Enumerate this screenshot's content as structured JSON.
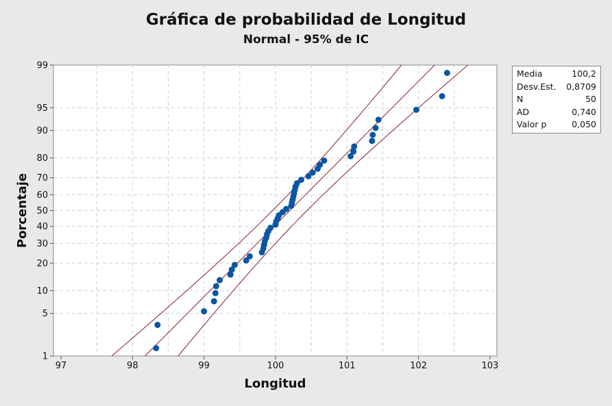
{
  "chart_data": {
    "type": "scatter",
    "title": "Gráfica de probabilidad de Longitud",
    "subtitle": "Normal - 95% de IC",
    "xlabel": "Longitud",
    "ylabel": "Porcentaje",
    "xlim": [
      96.97,
      103.15
    ],
    "ylim": [
      1,
      99
    ],
    "y_scale": "normal-probability",
    "grid": true,
    "x_ticks": [
      "97",
      "98",
      "99",
      "100",
      "101",
      "102",
      "103"
    ],
    "y_ticks": [
      "1",
      "5",
      "10",
      "20",
      "30",
      "40",
      "50",
      "60",
      "70",
      "80",
      "90",
      "95",
      "99"
    ],
    "values": [
      98.33,
      98.35,
      99.0,
      99.14,
      99.16,
      99.17,
      99.22,
      99.37,
      99.39,
      99.43,
      99.59,
      99.64,
      99.81,
      99.83,
      99.84,
      99.85,
      99.87,
      99.88,
      99.9,
      99.93,
      100.0,
      100.01,
      100.03,
      100.05,
      100.1,
      100.15,
      100.22,
      100.23,
      100.24,
      100.25,
      100.26,
      100.27,
      100.28,
      100.3,
      100.36,
      100.46,
      100.52,
      100.59,
      100.62,
      100.68,
      101.05,
      101.09,
      101.1,
      101.35,
      101.36,
      101.4,
      101.44,
      101.97,
      102.33,
      102.4
    ],
    "fit": {
      "mean": 100.2,
      "stdev": 0.8709,
      "n": 50,
      "ci_level": 0.95
    },
    "colors": {
      "points": "#0b56a3",
      "lines": "#8b1a2b"
    },
    "legend": {
      "placement": "right",
      "rows": [
        {
          "label": "Media",
          "value": "100,2"
        },
        {
          "label": "Desv.Est.",
          "value": "0,8709"
        },
        {
          "label": "N",
          "value": "50"
        },
        {
          "label": "AD",
          "value": "0,740"
        },
        {
          "label": "Valor p",
          "value": "0,050"
        }
      ]
    }
  }
}
